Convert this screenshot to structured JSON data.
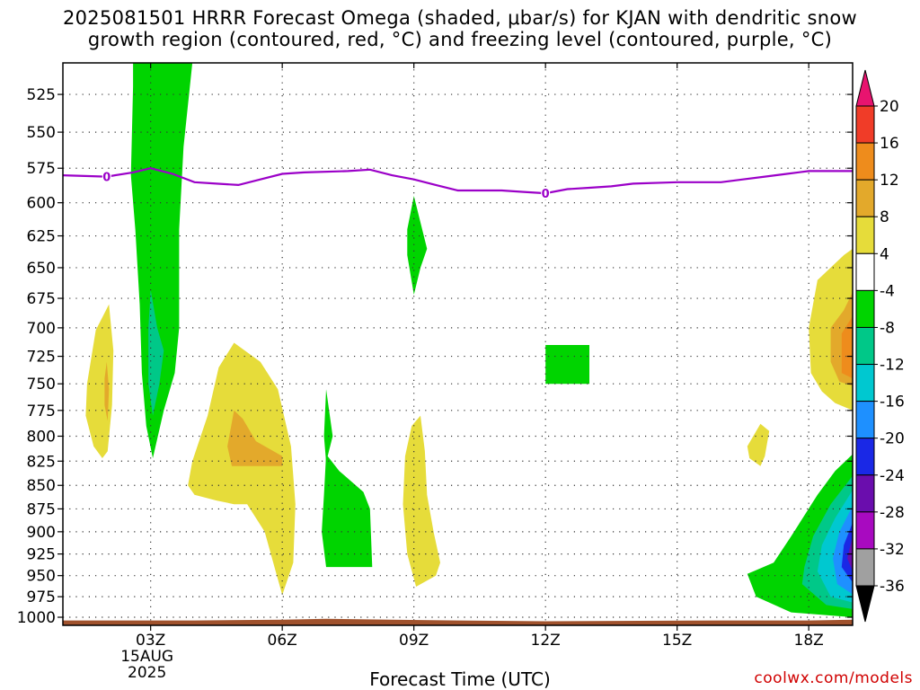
{
  "title": {
    "line1": "2025081501 HRRR Forecast Omega (shaded, μbar/s) for KJAN with dendritic snow",
    "line2": "growth region (contoured, red, °C) and freezing level (contoured, purple, °C)"
  },
  "credit": "coolwx.com/models",
  "chart_data": {
    "type": "heatmap",
    "title": "2025081501 HRRR Forecast Omega (shaded, μbar/s) for KJAN with dendritic snow growth region (contoured, red, °C) and freezing level (contoured, purple, °C)",
    "xlabel": "Forecast Time (UTC)",
    "ylabel": "",
    "x_range_hours": [
      1,
      19
    ],
    "y_range_hpa": [
      505,
      1010
    ],
    "y_scale": "log",
    "grid": true,
    "x_ticks": [
      {
        "hour": 3,
        "label": "03Z",
        "sub": [
          "15AUG",
          "2025"
        ]
      },
      {
        "hour": 6,
        "label": "06Z",
        "sub": []
      },
      {
        "hour": 9,
        "label": "09Z",
        "sub": []
      },
      {
        "hour": 12,
        "label": "12Z",
        "sub": []
      },
      {
        "hour": 15,
        "label": "15Z",
        "sub": []
      },
      {
        "hour": 18,
        "label": "18Z",
        "sub": []
      }
    ],
    "y_ticks": [
      525,
      550,
      575,
      600,
      625,
      650,
      675,
      700,
      725,
      750,
      775,
      800,
      825,
      850,
      875,
      900,
      925,
      950,
      975,
      1000
    ],
    "colorbar": {
      "labels": [
        "20",
        "16",
        "12",
        "8",
        "4",
        "-4",
        "-8",
        "-12",
        "-16",
        "-20",
        "-24",
        "-28",
        "-32",
        "-36"
      ],
      "bins": [
        {
          "lo": 20,
          "hi": 99,
          "color": "#e8146f",
          "triangle": true
        },
        {
          "lo": 16,
          "hi": 20,
          "color": "#f03c28"
        },
        {
          "lo": 12,
          "hi": 16,
          "color": "#ee8c1c"
        },
        {
          "lo": 8,
          "hi": 12,
          "color": "#e3a92b"
        },
        {
          "lo": 4,
          "hi": 8,
          "color": "#e6dc3a"
        },
        {
          "lo": -4,
          "hi": 4,
          "color": "#ffffff"
        },
        {
          "lo": -8,
          "hi": -4,
          "color": "#00d400"
        },
        {
          "lo": -12,
          "hi": -8,
          "color": "#00c888"
        },
        {
          "lo": -16,
          "hi": -12,
          "color": "#00c8d0"
        },
        {
          "lo": -20,
          "hi": -16,
          "color": "#1e90ff"
        },
        {
          "lo": -24,
          "hi": -20,
          "color": "#1a28e6"
        },
        {
          "lo": -28,
          "hi": -24,
          "color": "#6a0dad"
        },
        {
          "lo": -32,
          "hi": -28,
          "color": "#a80ac0"
        },
        {
          "lo": -36,
          "hi": -32,
          "color": "#a0a0a0"
        },
        {
          "lo": -99,
          "hi": -36,
          "color": "#000000",
          "triangle": true
        }
      ]
    },
    "freezing_level": {
      "color": "#9b00c8",
      "label": "0",
      "label_points": [
        {
          "hour": 2,
          "hpa": 581
        },
        {
          "hour": 12,
          "hpa": 593
        }
      ],
      "points": [
        {
          "hour": 1.0,
          "hpa": 580
        },
        {
          "hour": 2.0,
          "hpa": 581
        },
        {
          "hour": 2.6,
          "hpa": 578
        },
        {
          "hour": 3.0,
          "hpa": 575
        },
        {
          "hour": 3.5,
          "hpa": 579
        },
        {
          "hour": 4.0,
          "hpa": 585
        },
        {
          "hour": 4.5,
          "hpa": 586
        },
        {
          "hour": 5.0,
          "hpa": 587
        },
        {
          "hour": 5.5,
          "hpa": 583
        },
        {
          "hour": 6.0,
          "hpa": 579
        },
        {
          "hour": 6.5,
          "hpa": 578
        },
        {
          "hour": 7.5,
          "hpa": 577
        },
        {
          "hour": 8.0,
          "hpa": 576
        },
        {
          "hour": 8.5,
          "hpa": 580
        },
        {
          "hour": 9.0,
          "hpa": 583
        },
        {
          "hour": 9.5,
          "hpa": 587
        },
        {
          "hour": 10.0,
          "hpa": 591
        },
        {
          "hour": 10.5,
          "hpa": 591
        },
        {
          "hour": 11.0,
          "hpa": 591
        },
        {
          "hour": 11.5,
          "hpa": 592
        },
        {
          "hour": 12.0,
          "hpa": 593
        },
        {
          "hour": 12.5,
          "hpa": 590
        },
        {
          "hour": 13.0,
          "hpa": 589
        },
        {
          "hour": 13.5,
          "hpa": 588
        },
        {
          "hour": 14.0,
          "hpa": 586
        },
        {
          "hour": 15.0,
          "hpa": 585
        },
        {
          "hour": 16.0,
          "hpa": 585
        },
        {
          "hour": 16.5,
          "hpa": 583
        },
        {
          "hour": 17.0,
          "hpa": 581
        },
        {
          "hour": 17.5,
          "hpa": 579
        },
        {
          "hour": 18.0,
          "hpa": 577
        },
        {
          "hour": 19.0,
          "hpa": 577
        }
      ]
    },
    "terrain": {
      "color": "#a0522d",
      "points": [
        {
          "hour": 1.0,
          "hpa": 1004
        },
        {
          "hour": 4.0,
          "hpa": 1004
        },
        {
          "hour": 6.0,
          "hpa": 1003
        },
        {
          "hour": 7.0,
          "hpa": 1002
        },
        {
          "hour": 8.5,
          "hpa": 1003
        },
        {
          "hour": 10.0,
          "hpa": 1004
        },
        {
          "hour": 12.0,
          "hpa": 1005
        },
        {
          "hour": 16.0,
          "hpa": 1004
        },
        {
          "hour": 18.0,
          "hpa": 1004
        },
        {
          "hour": 19.0,
          "hpa": 1003
        }
      ]
    },
    "omega_regions": [
      {
        "name": "ascent-column-03z",
        "value": -6,
        "points": [
          [
            2.6,
            505
          ],
          [
            3.95,
            505
          ],
          [
            3.75,
            560
          ],
          [
            3.65,
            620
          ],
          [
            3.65,
            700
          ],
          [
            3.55,
            740
          ],
          [
            3.3,
            775
          ],
          [
            3.05,
            822
          ],
          [
            2.9,
            790
          ],
          [
            2.8,
            740
          ],
          [
            2.75,
            680
          ],
          [
            2.65,
            620
          ],
          [
            2.55,
            580
          ],
          [
            2.6,
            520
          ]
        ]
      },
      {
        "name": "ascent-core-03z",
        "value": -10,
        "points": [
          [
            3.0,
            668
          ],
          [
            3.15,
            700
          ],
          [
            3.3,
            720
          ],
          [
            3.2,
            750
          ],
          [
            3.05,
            780
          ],
          [
            2.95,
            750
          ],
          [
            2.95,
            700
          ]
        ]
      },
      {
        "name": "subsidence-0140z",
        "value": 5,
        "points": [
          [
            1.55,
            750
          ],
          [
            1.75,
            702
          ],
          [
            2.05,
            680
          ],
          [
            2.15,
            720
          ],
          [
            2.12,
            770
          ],
          [
            2.02,
            815
          ],
          [
            1.9,
            822
          ],
          [
            1.7,
            810
          ],
          [
            1.52,
            780
          ]
        ]
      },
      {
        "name": "subsidence-0140z-core",
        "value": 9,
        "points": [
          [
            1.95,
            745
          ],
          [
            2.0,
            730
          ],
          [
            2.05,
            755
          ],
          [
            2.02,
            785
          ],
          [
            1.95,
            770
          ]
        ]
      },
      {
        "name": "subsidence-05z",
        "value": 5,
        "points": [
          [
            3.85,
            850
          ],
          [
            3.95,
            825
          ],
          [
            4.3,
            780
          ],
          [
            4.55,
            735
          ],
          [
            4.9,
            713
          ],
          [
            5.5,
            730
          ],
          [
            5.9,
            755
          ],
          [
            6.2,
            810
          ],
          [
            6.3,
            870
          ],
          [
            6.25,
            935
          ],
          [
            6.0,
            973
          ],
          [
            5.85,
            945
          ],
          [
            5.6,
            900
          ],
          [
            5.2,
            870
          ],
          [
            4.9,
            870
          ],
          [
            4.5,
            866
          ],
          [
            4.0,
            860
          ]
        ]
      },
      {
        "name": "subsidence-05z-core",
        "value": 9,
        "points": [
          [
            4.9,
            775
          ],
          [
            5.1,
            783
          ],
          [
            5.4,
            805
          ],
          [
            6.0,
            820
          ],
          [
            6.0,
            830
          ],
          [
            4.85,
            830
          ],
          [
            4.75,
            810
          ]
        ]
      },
      {
        "name": "ascent-0645z-needle",
        "value": -6,
        "points": [
          [
            7.0,
            755
          ],
          [
            7.15,
            800
          ],
          [
            7.0,
            826
          ],
          [
            6.95,
            800
          ]
        ]
      },
      {
        "name": "ascent-0730z",
        "value": -6,
        "points": [
          [
            7.0,
            818
          ],
          [
            7.3,
            835
          ],
          [
            7.85,
            857
          ],
          [
            8.0,
            875
          ],
          [
            8.05,
            940
          ],
          [
            7.0,
            940
          ],
          [
            6.9,
            900
          ],
          [
            6.95,
            860
          ]
        ]
      },
      {
        "name": "subsidence-09z",
        "value": 5,
        "points": [
          [
            8.8,
            820
          ],
          [
            8.95,
            790
          ],
          [
            9.15,
            780
          ],
          [
            9.25,
            815
          ],
          [
            9.3,
            860
          ],
          [
            9.45,
            900
          ],
          [
            9.6,
            935
          ],
          [
            9.5,
            950
          ],
          [
            9.05,
            963
          ],
          [
            8.85,
            925
          ],
          [
            8.75,
            870
          ]
        ]
      },
      {
        "name": "ascent-09z-sliver",
        "value": -6,
        "points": [
          [
            8.85,
            620
          ],
          [
            9.0,
            595
          ],
          [
            9.3,
            635
          ],
          [
            9.15,
            650
          ],
          [
            9.0,
            672
          ],
          [
            8.85,
            640
          ]
        ]
      },
      {
        "name": "ascent-1230z-box",
        "value": -6,
        "points": [
          [
            12.0,
            715
          ],
          [
            13.0,
            715
          ],
          [
            13.0,
            750
          ],
          [
            12.0,
            750
          ]
        ]
      },
      {
        "name": "subsidence-17z-blob",
        "value": 5,
        "points": [
          [
            16.6,
            810
          ],
          [
            16.9,
            788
          ],
          [
            17.1,
            795
          ],
          [
            17.0,
            820
          ],
          [
            16.9,
            830
          ],
          [
            16.65,
            822
          ]
        ]
      },
      {
        "name": "subsidence-1830z",
        "value": 5,
        "points": [
          [
            19.0,
            635
          ],
          [
            18.8,
            640
          ],
          [
            18.2,
            660
          ],
          [
            18.0,
            700
          ],
          [
            18.05,
            740
          ],
          [
            18.3,
            757
          ],
          [
            18.6,
            768
          ],
          [
            19.0,
            775
          ]
        ]
      },
      {
        "name": "subsidence-1830z-core",
        "value": 9,
        "points": [
          [
            19.0,
            670
          ],
          [
            18.8,
            685
          ],
          [
            18.5,
            700
          ],
          [
            18.5,
            730
          ],
          [
            18.7,
            748
          ],
          [
            19.0,
            752
          ]
        ]
      },
      {
        "name": "subsidence-1830z-inner",
        "value": 13,
        "points": [
          [
            19.0,
            690
          ],
          [
            18.75,
            705
          ],
          [
            18.75,
            740
          ],
          [
            19.0,
            745
          ]
        ]
      },
      {
        "name": "ascent-1830z",
        "value": -6,
        "points": [
          [
            19.0,
            818
          ],
          [
            18.6,
            835
          ],
          [
            18.2,
            860
          ],
          [
            17.6,
            905
          ],
          [
            17.2,
            935
          ],
          [
            16.6,
            948
          ],
          [
            16.8,
            975
          ],
          [
            17.6,
            994
          ],
          [
            19.0,
            1000
          ]
        ]
      },
      {
        "name": "ascent-1830z-b",
        "value": -10,
        "points": [
          [
            19.0,
            840
          ],
          [
            18.5,
            870
          ],
          [
            18.1,
            905
          ],
          [
            17.9,
            940
          ],
          [
            17.85,
            960
          ],
          [
            18.4,
            985
          ],
          [
            19.0,
            990
          ]
        ]
      },
      {
        "name": "ascent-1830z-c",
        "value": -14,
        "points": [
          [
            19.0,
            855
          ],
          [
            18.6,
            885
          ],
          [
            18.3,
            915
          ],
          [
            18.2,
            945
          ],
          [
            18.5,
            975
          ],
          [
            19.0,
            982
          ]
        ]
      },
      {
        "name": "ascent-1830z-d",
        "value": -18,
        "points": [
          [
            19.0,
            872
          ],
          [
            18.7,
            900
          ],
          [
            18.55,
            930
          ],
          [
            18.65,
            960
          ],
          [
            19.0,
            972
          ]
        ]
      },
      {
        "name": "ascent-1830z-e",
        "value": -22,
        "points": [
          [
            19.0,
            890
          ],
          [
            18.8,
            915
          ],
          [
            18.75,
            940
          ],
          [
            19.0,
            958
          ]
        ]
      },
      {
        "name": "ascent-1830z-f",
        "value": -26,
        "points": [
          [
            19.0,
            905
          ],
          [
            18.88,
            930
          ],
          [
            19.0,
            945
          ]
        ]
      }
    ]
  }
}
